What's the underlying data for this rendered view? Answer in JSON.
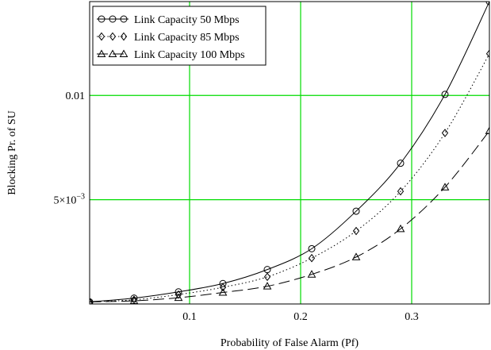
{
  "chart_data": {
    "type": "line",
    "xlabel": "Probability of False Alarm (Pf)",
    "ylabel": "Blocking Pr. of SU",
    "xlim": [
      0.01,
      0.37
    ],
    "ylim": [
      0,
      0.0145
    ],
    "x_ticks": [
      {
        "value": 0.1,
        "label": "0.1"
      },
      {
        "value": 0.2,
        "label": "0.2"
      },
      {
        "value": 0.3,
        "label": "0.3"
      }
    ],
    "y_ticks": [
      {
        "value": 0.005,
        "label": "5×10",
        "exp": "−3"
      },
      {
        "value": 0.01,
        "label": "0.01",
        "exp": ""
      }
    ],
    "grid": true,
    "grid_color": "#00dd00",
    "legend_position": "top-left",
    "x": [
      0.01,
      0.05,
      0.09,
      0.13,
      0.17,
      0.21,
      0.25,
      0.29,
      0.33,
      0.37
    ],
    "series": [
      {
        "name": "Link Capacity 50 Mbps",
        "marker": "circle",
        "dash": "solid",
        "values": [
          0.0001,
          0.00028,
          0.00058,
          0.00098,
          0.00165,
          0.00265,
          0.00445,
          0.00675,
          0.01005,
          0.0145
        ]
      },
      {
        "name": "Link Capacity 85 Mbps",
        "marker": "diamond",
        "dash": "dotted",
        "values": [
          0.0001,
          0.0002,
          0.00045,
          0.0008,
          0.0013,
          0.0022,
          0.0035,
          0.0054,
          0.0082,
          0.012
        ]
      },
      {
        "name": "Link Capacity 100 Mbps",
        "marker": "triangle",
        "dash": "dashed",
        "values": [
          0.0001,
          0.00015,
          0.0003,
          0.00055,
          0.00085,
          0.00142,
          0.00225,
          0.0036,
          0.0056,
          0.0083
        ]
      }
    ]
  }
}
